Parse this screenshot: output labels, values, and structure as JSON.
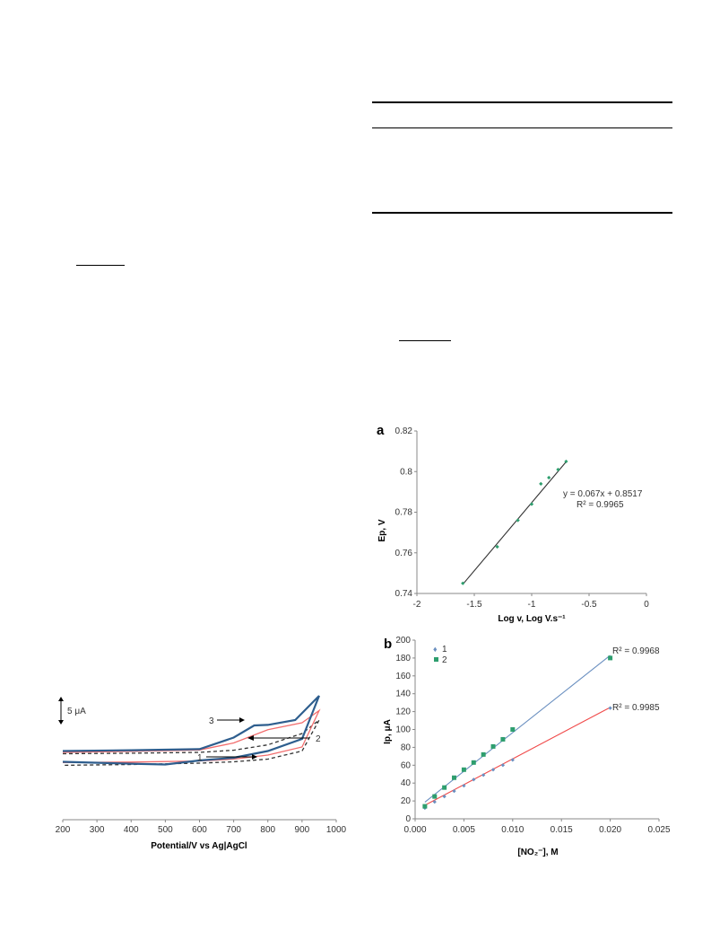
{
  "chart_data": [
    {
      "type": "line",
      "xlabel": "Potential/V vs Ag|AgCl",
      "xlim": [
        200,
        1000
      ],
      "xticks": [
        200,
        300,
        400,
        500,
        600,
        700,
        800,
        900,
        1000
      ],
      "scale_bar": "5 μA",
      "series": [
        {
          "name": "1",
          "style": "dashed",
          "color": "#333333",
          "anodic": [
            [
              200,
              18.5
            ],
            [
              400,
              18.7
            ],
            [
              600,
              19.0
            ],
            [
              700,
              19.8
            ],
            [
              800,
              21.8
            ],
            [
              900,
              26.0
            ],
            [
              950,
              31.0
            ]
          ],
          "cathodic": [
            [
              200,
              14.2
            ],
            [
              400,
              14.5
            ],
            [
              600,
              15.0
            ],
            [
              700,
              15.5
            ],
            [
              800,
              16.5
            ],
            [
              900,
              19.5
            ],
            [
              950,
              31.0
            ]
          ]
        },
        {
          "name": "2",
          "style": "solid",
          "color": "#f26d6d",
          "anodic": [
            [
              200,
              19.0
            ],
            [
              400,
              19.4
            ],
            [
              600,
              19.9
            ],
            [
              700,
              22.5
            ],
            [
              800,
              27.4
            ],
            [
              900,
              30.0
            ],
            [
              950,
              34.5
            ]
          ],
          "cathodic": [
            [
              200,
              15.2
            ],
            [
              400,
              15.4
            ],
            [
              600,
              15.8
            ],
            [
              700,
              16.5
            ],
            [
              800,
              18.0
            ],
            [
              900,
              21.0
            ],
            [
              950,
              34.5
            ]
          ]
        },
        {
          "name": "3",
          "style": "solid",
          "color": "#2e5e8e",
          "anodic": [
            [
              200,
              19.5
            ],
            [
              400,
              19.8
            ],
            [
              600,
              20.2
            ],
            [
              700,
              24.5
            ],
            [
              760,
              29.0
            ],
            [
              800,
              29.2
            ],
            [
              880,
              31.0
            ],
            [
              950,
              40.0
            ]
          ],
          "cathodic": [
            [
              200,
              15.5
            ],
            [
              400,
              14.8
            ],
            [
              500,
              14.5
            ],
            [
              600,
              16.0
            ],
            [
              700,
              17.0
            ],
            [
              800,
              19.5
            ],
            [
              900,
              24.0
            ],
            [
              950,
              40.0
            ]
          ]
        }
      ],
      "labels": [
        "1",
        "2",
        "3"
      ]
    },
    {
      "type": "scatter",
      "panel": "a",
      "xlabel": "Log v, Log V.s⁻¹",
      "ylabel": "Ep, V",
      "xlim": [
        -2,
        0
      ],
      "ylim": [
        0.74,
        0.82
      ],
      "xticks": [
        "-2",
        "-1.5",
        "-1",
        "-0.5",
        "0"
      ],
      "yticks": [
        "0.74",
        "0.76",
        "0.78",
        "0.8",
        "0.82"
      ],
      "points": [
        [
          -1.6,
          0.745
        ],
        [
          -1.3,
          0.763
        ],
        [
          -1.12,
          0.776
        ],
        [
          -1.0,
          0.784
        ],
        [
          -0.92,
          0.794
        ],
        [
          -0.85,
          0.797
        ],
        [
          -0.77,
          0.801
        ],
        [
          -0.7,
          0.805
        ]
      ],
      "fit": {
        "slope": 0.067,
        "intercept": 0.8517,
        "x_range": [
          -1.6,
          -0.7
        ]
      },
      "equation": "y = 0.067x + 0.8517",
      "r2": "R² = 0.9965"
    },
    {
      "type": "scatter",
      "panel": "b",
      "xlabel": "[NO₂⁻], M",
      "ylabel": "Ip, μA",
      "xlim": [
        0,
        0.025
      ],
      "ylim": [
        0,
        200
      ],
      "xticks": [
        "0.000",
        "0.005",
        "0.010",
        "0.015",
        "0.020",
        "0.025"
      ],
      "yticks": [
        "0",
        "20",
        "40",
        "60",
        "80",
        "100",
        "120",
        "140",
        "160",
        "180",
        "200"
      ],
      "series": [
        {
          "name": "1",
          "marker_color": "#6a8fc0",
          "line_color": "#f04a4a",
          "x": [
            0.001,
            0.002,
            0.003,
            0.004,
            0.005,
            0.006,
            0.007,
            0.008,
            0.009,
            0.01,
            0.02
          ],
          "y": [
            12,
            19,
            25,
            31,
            37,
            44,
            49,
            55,
            60,
            66,
            124
          ],
          "fit": {
            "slope": 5768,
            "intercept": 9.4
          },
          "r2": "R² = 0.9985"
        },
        {
          "name": "2",
          "marker_color": "#2e9e6e",
          "line_color": "#6a8fc0",
          "x": [
            0.001,
            0.002,
            0.003,
            0.004,
            0.005,
            0.006,
            0.007,
            0.008,
            0.009,
            0.01,
            0.02
          ],
          "y": [
            14,
            25,
            35,
            46,
            55,
            63,
            72,
            81,
            89,
            100,
            180
          ],
          "fit": {
            "slope": 8650,
            "intercept": 10
          },
          "r2": "R² = 0.9968"
        }
      ]
    }
  ],
  "panel_labels": {
    "a": "a",
    "b": "b"
  }
}
